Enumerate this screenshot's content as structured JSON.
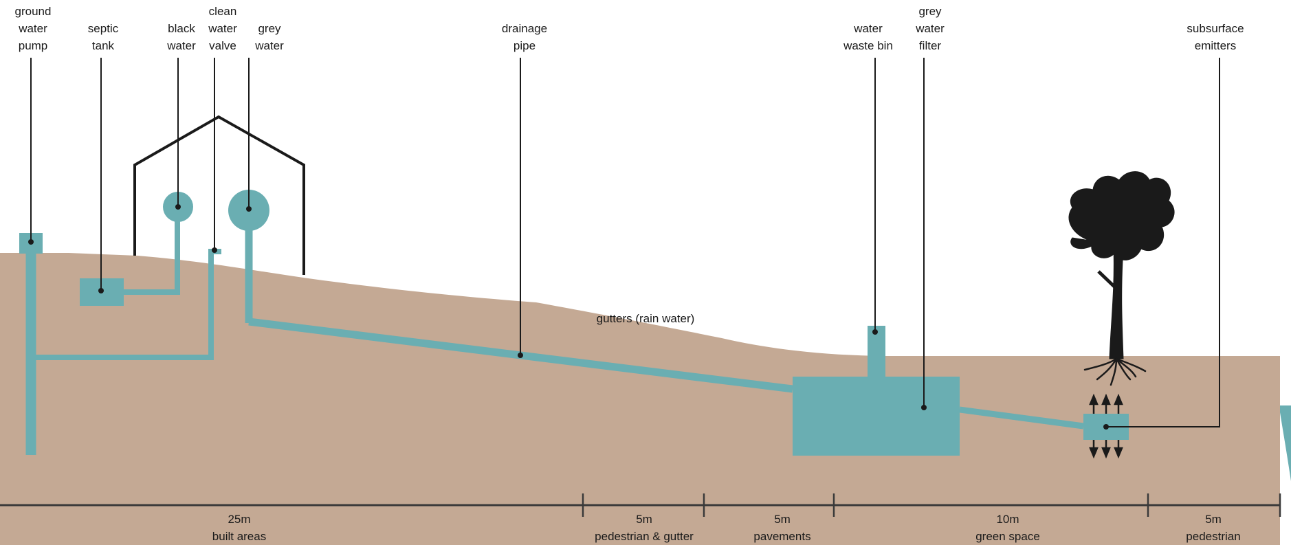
{
  "colors": {
    "ground": "#c4a994",
    "water": "#6aaeb2",
    "ink": "#1a1a1a",
    "background": "#ffffff"
  },
  "labels": {
    "ground_water_pump": [
      "ground",
      "water",
      "pump"
    ],
    "septic_tank": [
      "septic",
      "tank"
    ],
    "black_water": [
      "black",
      "water"
    ],
    "clean_water_valve": [
      "clean",
      "water",
      "valve"
    ],
    "grey_water": [
      "grey",
      "water"
    ],
    "drainage_pipe": [
      "drainage",
      "pipe"
    ],
    "water_waste_bin": [
      "water",
      "waste bin"
    ],
    "grey_water_filter": [
      "grey",
      "water",
      "filter"
    ],
    "subsurface_emitters": [
      "subsurface",
      "emitters"
    ],
    "gutters": "gutters (rain water)"
  },
  "icons": {
    "tree": "tree-silhouette-icon",
    "house": "house-outline-icon",
    "arrows": "emitter-arrows-icon"
  },
  "scale": [
    {
      "distance": "25m",
      "name": "built areas"
    },
    {
      "distance": "5m",
      "name": "pedestrian & gutter"
    },
    {
      "distance": "5m",
      "name": "pavements"
    },
    {
      "distance": "10m",
      "name": "green space"
    },
    {
      "distance": "5m",
      "name": "pedestrian"
    }
  ]
}
